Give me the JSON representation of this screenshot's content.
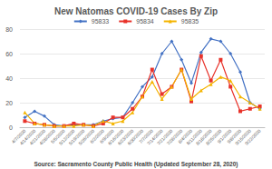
{
  "chart_data": {
    "type": "line",
    "title": "New Natomas COVID-19 Cases By Zip",
    "annotations": [
      "Source: Sacramento County Public Health (Updated September 28, 2020)"
    ],
    "categories": [
      "4/7/2020",
      "4/14/2020",
      "4/21/2020",
      "4/28/2020",
      "5/5/2020",
      "5/12/2020",
      "5/19/2020",
      "5/26/2020",
      "6/2/2020",
      "6/9/2020",
      "6/16/2020",
      "6/23/2020",
      "6/30/2020",
      "7/7/2020",
      "7/14/2020",
      "7/21/2020",
      "7/28/2020",
      "8/4/2020",
      "8/11/2020",
      "8/18/2020",
      "8/25/2020",
      "9/1/2020",
      "9/8/2020",
      "9/15/2020",
      "9/22/2020"
    ],
    "series": [
      {
        "name": "95833",
        "color": "#4472c4",
        "marker": "diamond",
        "values": [
          8,
          13,
          9,
          2,
          1,
          2,
          2,
          2,
          5,
          7,
          8,
          20,
          33,
          41,
          60,
          70,
          55,
          36,
          61,
          72,
          70,
          60,
          45,
          20,
          15
        ]
      },
      {
        "name": "95834",
        "color": "#e8322a",
        "marker": "square",
        "values": [
          5,
          3,
          2,
          1,
          1,
          3,
          2,
          1,
          3,
          8,
          8,
          15,
          25,
          47,
          27,
          33,
          47,
          21,
          58,
          38,
          55,
          33,
          13,
          15,
          17
        ]
      },
      {
        "name": "95835",
        "color": "#f4b400",
        "marker": "triangle",
        "values": [
          12,
          3,
          2,
          1,
          1,
          1,
          2,
          1,
          5,
          3,
          5,
          12,
          25,
          37,
          23,
          33,
          47,
          23,
          30,
          35,
          41,
          38,
          25,
          20,
          15
        ]
      }
    ],
    "ylim": [
      0,
      80
    ],
    "yticks": [
      0,
      20,
      40,
      60,
      80
    ],
    "grid": true,
    "legend": "top"
  }
}
